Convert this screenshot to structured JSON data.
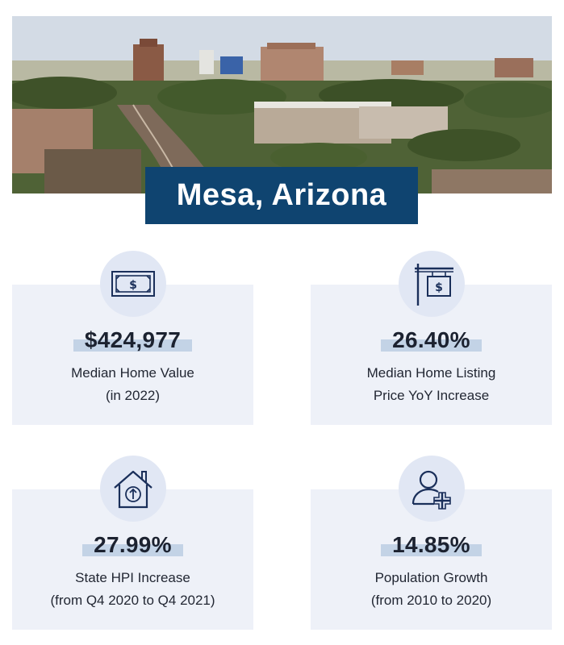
{
  "title": "Mesa, Arizona",
  "hero": {
    "icon": "city-skyline-photo"
  },
  "colors": {
    "banner": "#0f4470",
    "card": "#eef1f8",
    "highlight": "#c3d3e6",
    "icon_stroke": "#1a2f5a"
  },
  "cards": [
    {
      "icon": "dollar-bill-icon",
      "value": "$424,977",
      "line1": "Median Home Value",
      "line2": "(in 2022)"
    },
    {
      "icon": "for-sale-sign-icon",
      "value": "26.40%",
      "line1": "Median Home Listing",
      "line2": "Price YoY Increase"
    },
    {
      "icon": "house-arrow-icon",
      "value": "27.99%",
      "line1": "State HPI Increase",
      "line2": "(from Q4 2020 to Q4 2021)"
    },
    {
      "icon": "user-plus-icon",
      "value": "14.85%",
      "line1": "Population Growth",
      "line2": "(from 2010 to 2020)"
    }
  ]
}
